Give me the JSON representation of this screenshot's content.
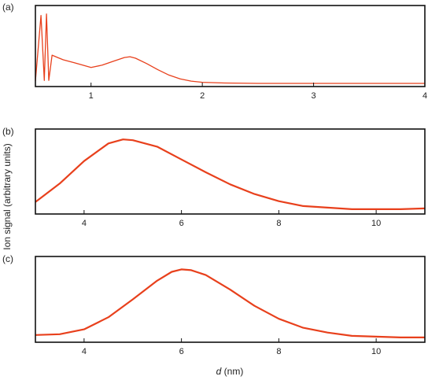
{
  "figure": {
    "ylabel": "Ion signal (arbitrary units)",
    "xlabel_var": "d",
    "xlabel_unit": " (nm)",
    "series_color": "#e8401c"
  },
  "chart_data": [
    {
      "type": "line",
      "panel_label": "(a)",
      "xlim": [
        0.5,
        4
      ],
      "ylim": [
        0,
        1
      ],
      "x_ticks": [
        1,
        2,
        3,
        4
      ],
      "tick_labels": [
        "1",
        "2",
        "3",
        "4"
      ],
      "x": [
        0.5,
        0.55,
        0.58,
        0.6,
        0.62,
        0.65,
        0.7,
        0.75,
        0.8,
        0.85,
        0.9,
        1.0,
        1.1,
        1.2,
        1.3,
        1.35,
        1.4,
        1.5,
        1.6,
        1.7,
        1.8,
        1.9,
        2.0,
        2.2,
        2.5,
        3.0,
        3.5,
        4.0
      ],
      "y": [
        0.04,
        0.9,
        0.05,
        0.92,
        0.05,
        0.38,
        0.35,
        0.32,
        0.3,
        0.28,
        0.26,
        0.22,
        0.25,
        0.3,
        0.35,
        0.36,
        0.34,
        0.27,
        0.19,
        0.12,
        0.07,
        0.04,
        0.025,
        0.015,
        0.01,
        0.01,
        0.01,
        0.01
      ],
      "grid": false,
      "legend": "none"
    },
    {
      "type": "line",
      "panel_label": "(b)",
      "xlim": [
        3,
        11
      ],
      "ylim": [
        0,
        1
      ],
      "x_ticks": [
        4,
        6,
        8,
        10
      ],
      "tick_labels": [
        "4",
        "6",
        "8",
        "10"
      ],
      "x": [
        3.0,
        3.5,
        4.0,
        4.5,
        4.8,
        5.0,
        5.5,
        6.0,
        6.5,
        7.0,
        7.5,
        8.0,
        8.5,
        9.0,
        9.5,
        10.0,
        10.5,
        11.0
      ],
      "y": [
        0.12,
        0.35,
        0.63,
        0.85,
        0.9,
        0.89,
        0.81,
        0.65,
        0.49,
        0.34,
        0.22,
        0.13,
        0.07,
        0.05,
        0.03,
        0.03,
        0.03,
        0.04
      ],
      "grid": false,
      "legend": "none"
    },
    {
      "type": "line",
      "panel_label": "(c)",
      "xlim": [
        3,
        11
      ],
      "ylim": [
        0,
        1
      ],
      "x_ticks": [
        4,
        6,
        8,
        10
      ],
      "tick_labels": [
        "4",
        "6",
        "8",
        "10"
      ],
      "x": [
        3.0,
        3.5,
        4.0,
        4.5,
        5.0,
        5.5,
        5.8,
        6.0,
        6.2,
        6.5,
        7.0,
        7.5,
        8.0,
        8.5,
        9.0,
        9.5,
        10.0,
        10.5,
        11.0
      ],
      "y": [
        0.06,
        0.07,
        0.13,
        0.28,
        0.5,
        0.73,
        0.84,
        0.87,
        0.86,
        0.8,
        0.62,
        0.42,
        0.26,
        0.15,
        0.09,
        0.05,
        0.04,
        0.03,
        0.03
      ],
      "grid": false,
      "legend": "none"
    }
  ]
}
